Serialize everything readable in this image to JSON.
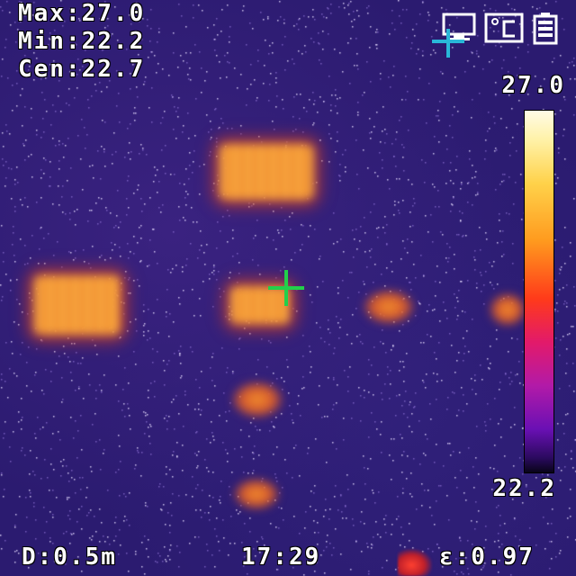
{
  "readouts": {
    "max_label": "Max:",
    "max_value": "27.0",
    "min_label": "Min:",
    "min_value": "22.2",
    "cen_label": "Cen:",
    "cen_value": "22.7"
  },
  "scale": {
    "max": "27.0",
    "min": "22.2"
  },
  "status_icons": [
    "display-icon",
    "celsius-icon",
    "battery-icon"
  ],
  "footer": {
    "distance": "D:0.5m",
    "time": "17:29",
    "emissivity": "ε:0.97"
  },
  "colors": {
    "crosshair": "#22d04a",
    "cursor": "#29b8d8",
    "background": "#2b1b70"
  }
}
